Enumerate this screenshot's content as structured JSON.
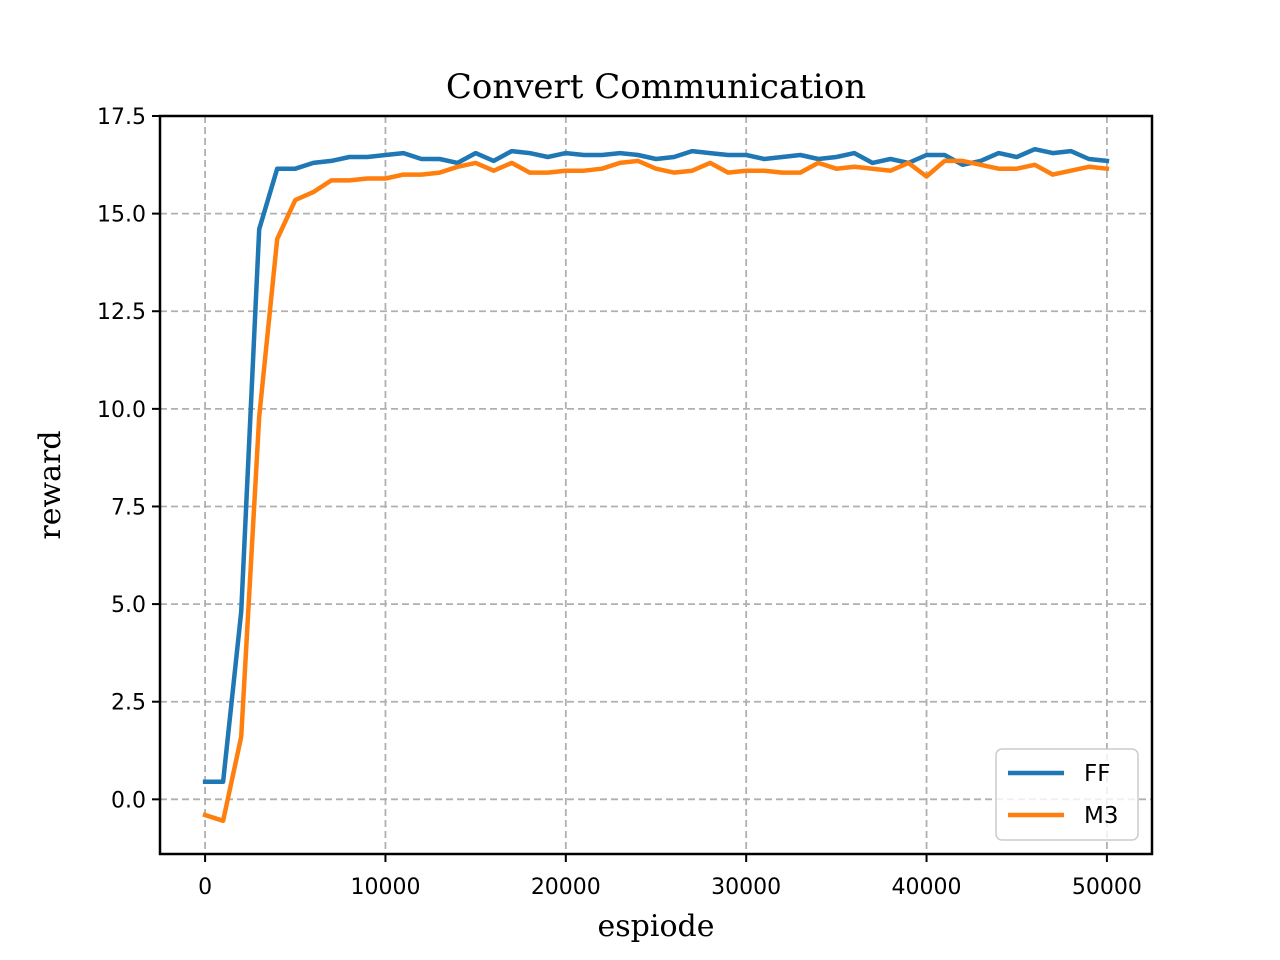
{
  "chart_data": {
    "type": "line",
    "title": "Convert Communication",
    "xlabel": "espiode",
    "ylabel": "reward",
    "xlim": [
      -2500,
      52500
    ],
    "ylim": [
      -1.4,
      17.5
    ],
    "x_ticks": [
      0,
      10000,
      20000,
      30000,
      40000,
      50000
    ],
    "y_ticks": [
      0.0,
      2.5,
      5.0,
      7.5,
      10.0,
      12.5,
      15.0,
      17.5
    ],
    "grid": true,
    "legend_position": "lower-right",
    "x": [
      0,
      1000,
      2000,
      3000,
      4000,
      5000,
      6000,
      7000,
      8000,
      9000,
      10000,
      11000,
      12000,
      13000,
      14000,
      15000,
      16000,
      17000,
      18000,
      19000,
      20000,
      21000,
      22000,
      23000,
      24000,
      25000,
      26000,
      27000,
      28000,
      29000,
      30000,
      31000,
      32000,
      33000,
      34000,
      35000,
      36000,
      37000,
      38000,
      39000,
      40000,
      41000,
      42000,
      43000,
      44000,
      45000,
      46000,
      47000,
      48000,
      49000,
      50000
    ],
    "series": [
      {
        "name": "FF",
        "color": "#1f77b4",
        "values": [
          0.45,
          0.45,
          4.8,
          14.6,
          16.15,
          16.15,
          16.3,
          16.35,
          16.45,
          16.45,
          16.5,
          16.55,
          16.4,
          16.4,
          16.3,
          16.55,
          16.35,
          16.6,
          16.55,
          16.45,
          16.55,
          16.5,
          16.5,
          16.55,
          16.5,
          16.4,
          16.45,
          16.6,
          16.55,
          16.5,
          16.5,
          16.4,
          16.45,
          16.5,
          16.4,
          16.45,
          16.55,
          16.3,
          16.4,
          16.3,
          16.5,
          16.5,
          16.25,
          16.35,
          16.55,
          16.45,
          16.65,
          16.55,
          16.6,
          16.4,
          16.35
        ]
      },
      {
        "name": "M3",
        "color": "#ff7f0e",
        "values": [
          -0.4,
          -0.55,
          1.6,
          9.8,
          14.35,
          15.35,
          15.55,
          15.85,
          15.85,
          15.9,
          15.9,
          16.0,
          16.0,
          16.05,
          16.2,
          16.3,
          16.1,
          16.3,
          16.05,
          16.05,
          16.1,
          16.1,
          16.15,
          16.3,
          16.35,
          16.15,
          16.05,
          16.1,
          16.3,
          16.05,
          16.1,
          16.1,
          16.05,
          16.05,
          16.3,
          16.15,
          16.2,
          16.15,
          16.1,
          16.3,
          15.95,
          16.35,
          16.35,
          16.25,
          16.15,
          16.15,
          16.25,
          16.0,
          16.1,
          16.2,
          16.15
        ]
      }
    ]
  }
}
